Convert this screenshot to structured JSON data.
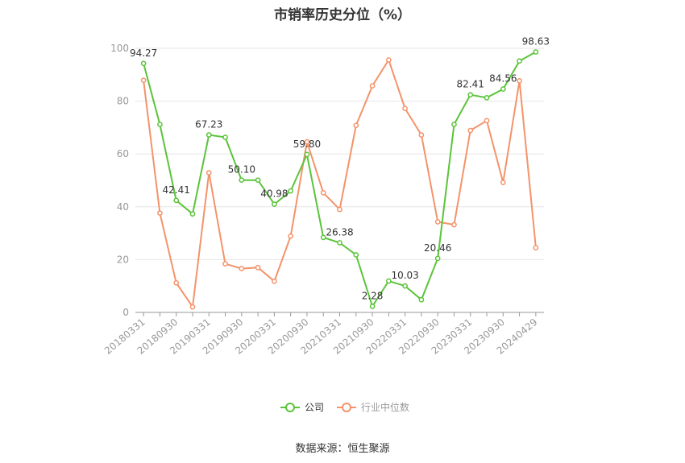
{
  "source": "数据来源：恒生聚源",
  "colors": {
    "company": "#5bc43a",
    "industry": "#f4936a",
    "grid": "#e6e6e6",
    "axis": "#999999"
  },
  "chart_data": {
    "type": "line",
    "title": "市销率历史分位（%）",
    "ylim": [
      0,
      100
    ],
    "yticks": [
      0,
      20,
      40,
      60,
      80,
      100
    ],
    "x_tick_labels": [
      "20180331",
      "20180930",
      "20190331",
      "20190930",
      "20200331",
      "20200930",
      "20210331",
      "20210930",
      "20220331",
      "20220930",
      "20230331",
      "20230930",
      "20240429"
    ],
    "x": [
      "20180331",
      "20180630",
      "20180930",
      "20181231",
      "20190331",
      "20190630",
      "20190930",
      "20191231",
      "20200331",
      "20200630",
      "20200930",
      "20201231",
      "20210331",
      "20210630",
      "20210930",
      "20211231",
      "20220331",
      "20220630",
      "20220930",
      "20221231",
      "20230331",
      "20230630",
      "20230930",
      "20231231",
      "20240429"
    ],
    "legend": "bottom-center",
    "series": [
      {
        "name": "公司",
        "values": [
          94.27,
          71.2,
          42.41,
          37.3,
          67.23,
          66.3,
          50.1,
          50.1,
          40.98,
          46.0,
          59.8,
          28.4,
          26.38,
          21.8,
          2.28,
          11.9,
          10.03,
          4.8,
          20.46,
          71.2,
          82.41,
          81.3,
          84.56,
          95.2,
          98.63
        ],
        "labels": [
          "94.27",
          "",
          "42.41",
          "",
          "67.23",
          "",
          "50.10",
          "",
          "40.98",
          "",
          "59.80",
          "",
          "26.38",
          "",
          "2.28",
          "",
          "10.03",
          "",
          "20.46",
          "",
          "82.41",
          "",
          "84.56",
          "",
          "98.63"
        ]
      },
      {
        "name": "行业中位数",
        "values": [
          87.9,
          37.6,
          11.2,
          2.1,
          52.9,
          18.4,
          16.6,
          17.0,
          11.8,
          28.9,
          64.6,
          45.3,
          39.0,
          70.8,
          85.8,
          95.6,
          77.2,
          67.2,
          34.3,
          33.2,
          68.9,
          72.6,
          49.2,
          87.7,
          24.5
        ]
      }
    ]
  }
}
